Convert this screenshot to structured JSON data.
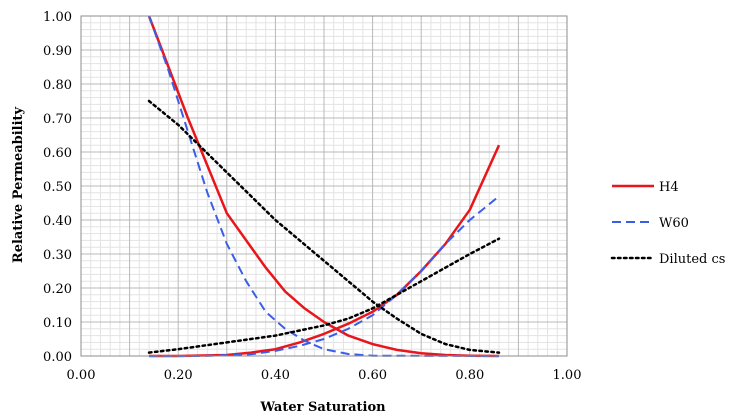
{
  "chart_data": {
    "type": "line",
    "title": "",
    "xlabel": "Water Saturation",
    "ylabel": "Relative Permeability",
    "xlim": [
      0,
      1
    ],
    "ylim": [
      0,
      1
    ],
    "x_ticks": [
      "0.00",
      "0.20",
      "0.40",
      "0.60",
      "0.80",
      "1.00"
    ],
    "y_ticks": [
      "0.00",
      "0.10",
      "0.20",
      "0.30",
      "0.40",
      "0.50",
      "0.60",
      "0.70",
      "0.80",
      "0.90",
      "1.00"
    ],
    "grid": true,
    "legend_position": "right",
    "series": [
      {
        "name": "H4",
        "color": "#e8161b",
        "dash": "solid",
        "width": 2.5,
        "curves": [
          [
            [
              0.14,
              1.0
            ],
            [
              0.18,
              0.85
            ],
            [
              0.22,
              0.7
            ],
            [
              0.26,
              0.56
            ],
            [
              0.3,
              0.42
            ],
            [
              0.34,
              0.34
            ],
            [
              0.38,
              0.26
            ],
            [
              0.42,
              0.19
            ],
            [
              0.46,
              0.14
            ],
            [
              0.5,
              0.1
            ],
            [
              0.55,
              0.06
            ],
            [
              0.6,
              0.035
            ],
            [
              0.65,
              0.018
            ],
            [
              0.7,
              0.008
            ],
            [
              0.75,
              0.003
            ],
            [
              0.8,
              0.0008
            ],
            [
              0.86,
              0.0
            ]
          ],
          [
            [
              0.14,
              0.0
            ],
            [
              0.2,
              0.0
            ],
            [
              0.3,
              0.003
            ],
            [
              0.35,
              0.01
            ],
            [
              0.4,
              0.02
            ],
            [
              0.45,
              0.04
            ],
            [
              0.5,
              0.065
            ],
            [
              0.55,
              0.095
            ],
            [
              0.6,
              0.13
            ],
            [
              0.65,
              0.18
            ],
            [
              0.7,
              0.25
            ],
            [
              0.75,
              0.33
            ],
            [
              0.8,
              0.43
            ],
            [
              0.86,
              0.62
            ]
          ]
        ]
      },
      {
        "name": "W60",
        "color": "#3b5ee8",
        "dash": "dashed",
        "width": 2,
        "curves": [
          [
            [
              0.14,
              1.0
            ],
            [
              0.18,
              0.84
            ],
            [
              0.22,
              0.66
            ],
            [
              0.26,
              0.48
            ],
            [
              0.3,
              0.33
            ],
            [
              0.34,
              0.22
            ],
            [
              0.38,
              0.13
            ],
            [
              0.42,
              0.08
            ],
            [
              0.46,
              0.045
            ],
            [
              0.5,
              0.02
            ],
            [
              0.55,
              0.006
            ],
            [
              0.6,
              0.001
            ],
            [
              0.86,
              0.0
            ]
          ],
          [
            [
              0.14,
              0.0
            ],
            [
              0.25,
              0.0
            ],
            [
              0.35,
              0.005
            ],
            [
              0.4,
              0.015
            ],
            [
              0.45,
              0.03
            ],
            [
              0.5,
              0.05
            ],
            [
              0.55,
              0.08
            ],
            [
              0.6,
              0.12
            ],
            [
              0.65,
              0.18
            ],
            [
              0.7,
              0.25
            ],
            [
              0.75,
              0.33
            ],
            [
              0.8,
              0.4
            ],
            [
              0.86,
              0.47
            ]
          ]
        ]
      },
      {
        "name": "Diluted cs",
        "color": "#000000",
        "dash": "dotted",
        "width": 2.5,
        "curves": [
          [
            [
              0.14,
              0.75
            ],
            [
              0.2,
              0.68
            ],
            [
              0.25,
              0.61
            ],
            [
              0.3,
              0.54
            ],
            [
              0.35,
              0.47
            ],
            [
              0.4,
              0.4
            ],
            [
              0.45,
              0.34
            ],
            [
              0.5,
              0.28
            ],
            [
              0.55,
              0.22
            ],
            [
              0.6,
              0.16
            ],
            [
              0.65,
              0.11
            ],
            [
              0.7,
              0.065
            ],
            [
              0.75,
              0.035
            ],
            [
              0.8,
              0.018
            ],
            [
              0.86,
              0.01
            ]
          ],
          [
            [
              0.14,
              0.01
            ],
            [
              0.2,
              0.02
            ],
            [
              0.25,
              0.03
            ],
            [
              0.3,
              0.04
            ],
            [
              0.35,
              0.05
            ],
            [
              0.4,
              0.06
            ],
            [
              0.45,
              0.075
            ],
            [
              0.5,
              0.09
            ],
            [
              0.55,
              0.11
            ],
            [
              0.6,
              0.14
            ],
            [
              0.65,
              0.18
            ],
            [
              0.7,
              0.22
            ],
            [
              0.75,
              0.26
            ],
            [
              0.8,
              0.3
            ],
            [
              0.86,
              0.345
            ]
          ]
        ]
      }
    ]
  }
}
